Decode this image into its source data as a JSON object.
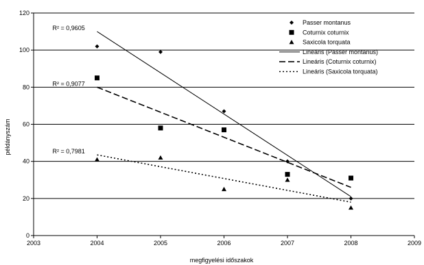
{
  "chart_data": {
    "type": "scatter",
    "xlabel": "megfigyelési időszakok",
    "ylabel": "példányszám",
    "xlim": [
      2003,
      2009
    ],
    "ylim": [
      0,
      120
    ],
    "x_ticks": [
      "2003",
      "2004",
      "2005",
      "2006",
      "2007",
      "2008",
      "2009"
    ],
    "y_ticks": [
      "0",
      "20",
      "40",
      "60",
      "80",
      "100",
      "120"
    ],
    "grid": "horizontal",
    "legend_position": "top-right",
    "series": [
      {
        "name": "Passer montanus",
        "marker": "diamond",
        "x": [
          2004,
          2005,
          2006,
          2007,
          2008
        ],
        "y": [
          102,
          99,
          67,
          40,
          20
        ],
        "trend": {
          "name": "Lineáris (Passer montanus)",
          "style": "solid",
          "from": [
            2004,
            110
          ],
          "to": [
            2008,
            21
          ],
          "r2_label": "R² = 0,9605",
          "r2_anchor": [
            2004,
            110
          ]
        }
      },
      {
        "name": "Coturnix coturnix",
        "marker": "square",
        "x": [
          2004,
          2005,
          2006,
          2007,
          2008
        ],
        "y": [
          85,
          58,
          57,
          33,
          31
        ],
        "trend": {
          "name": "Lineáris (Coturnix coturnix)",
          "style": "dashed",
          "from": [
            2004,
            80
          ],
          "to": [
            2008,
            26
          ],
          "r2_label": "R² = 0,9077",
          "r2_anchor": [
            2004,
            80
          ]
        }
      },
      {
        "name": "Saxicola torquata",
        "marker": "triangle",
        "x": [
          2004,
          2005,
          2006,
          2007,
          2008
        ],
        "y": [
          41,
          42,
          25,
          30,
          15
        ],
        "trend": {
          "name": "Lineáris (Saxicola torquata)",
          "style": "dotted",
          "from": [
            2004,
            43.5
          ],
          "to": [
            2008,
            18
          ],
          "r2_label": "R² = 0,7981",
          "r2_anchor": [
            2004,
            43.5
          ]
        }
      }
    ]
  },
  "colors": {
    "marker": "#000000",
    "line": "#000000",
    "grid": "#000000"
  }
}
